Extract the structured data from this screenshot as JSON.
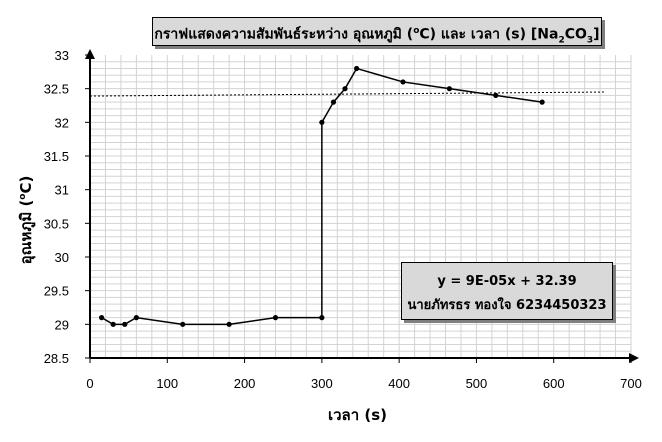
{
  "colors": {
    "grid": "#d3d3d3",
    "axis": "#000000",
    "series": "#000000",
    "trendline": "#000000",
    "box_fill": "#d9d9d9"
  },
  "chart_data": {
    "type": "scatter",
    "title": {
      "prefix": "กราฟแสดงความสัมพันธ์ระหว่าง อุณหภูมิ (",
      "sup": "o",
      "mid1": "C) และ เวลา (s) [Na",
      "sub1": "2",
      "mid2": "CO",
      "sub2": "3",
      "suffix": "]"
    },
    "xlabel": "เวลา (s)",
    "ylabel": {
      "prefix": "อุณหภูมิ (",
      "sup": "o",
      "suffix": "C)"
    },
    "xlim": [
      0,
      700
    ],
    "ylim": [
      28.5,
      33
    ],
    "x_ticks": [
      "0",
      "100",
      "200",
      "300",
      "400",
      "500",
      "600",
      "700"
    ],
    "y_ticks": [
      "28.5",
      "29",
      "29.5",
      "30",
      "30.5",
      "31",
      "31.5",
      "32",
      "32.5",
      "33"
    ],
    "x_minor_step": 20,
    "y_minor_step": 0.1,
    "grid": true,
    "series": [
      {
        "x": [
          15,
          30,
          45,
          60,
          120,
          180,
          240,
          300,
          300,
          315,
          330,
          345,
          405,
          465,
          525,
          585
        ],
        "y": [
          29.1,
          29.0,
          29.0,
          29.1,
          29.0,
          29.0,
          29.1,
          29.1,
          32.0,
          32.3,
          32.5,
          32.8,
          32.6,
          32.5,
          32.4,
          32.3
        ]
      }
    ],
    "trendline": {
      "x_start": 0,
      "x_end": 665,
      "slope": 9e-05,
      "intercept": 32.39
    },
    "annotation": {
      "equation": "y = 9E-05x + 32.39",
      "author": "นายภัทรธร ทองใจ 6234450323"
    }
  }
}
